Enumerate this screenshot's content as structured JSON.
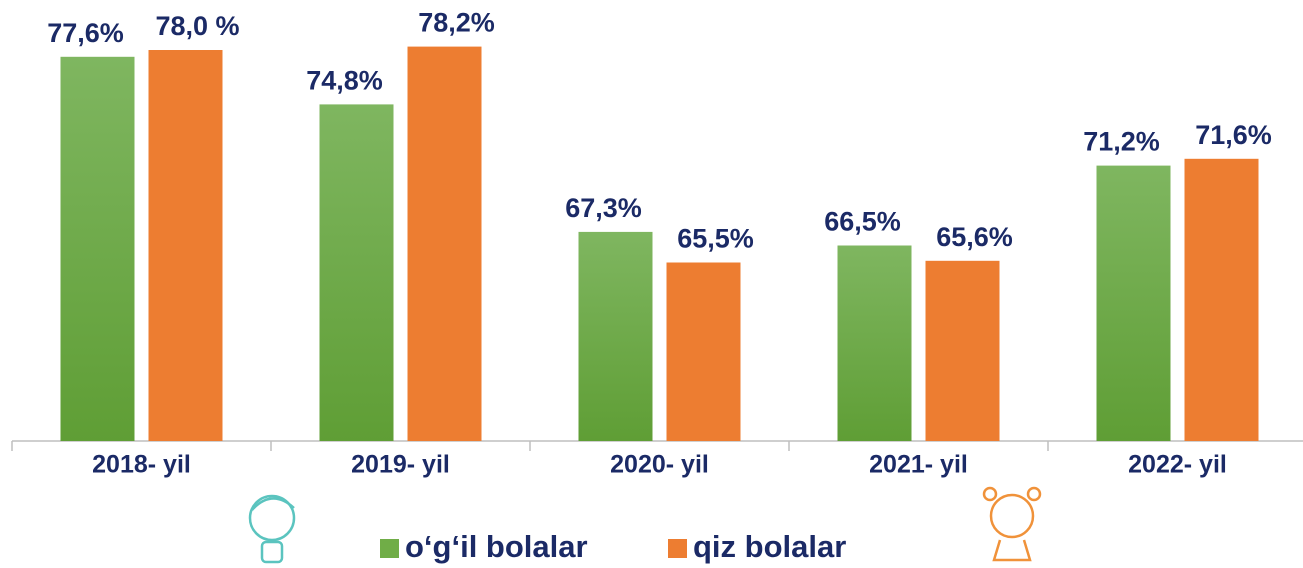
{
  "chart_data": {
    "type": "bar",
    "categories": [
      "2018- yil",
      "2019- yil",
      "2020- yil",
      "2021- yil",
      "2022- yil"
    ],
    "series": [
      {
        "name": "o‘g‘il bolalar",
        "color": "#70ad47",
        "values": [
          77.6,
          74.8,
          67.3,
          66.5,
          71.2
        ],
        "value_labels": [
          "77,6%",
          "74,8%",
          "67,3%",
          "66,5%",
          "71,2%"
        ]
      },
      {
        "name": "qiz bolalar",
        "color": "#ed7d31",
        "values": [
          78.0,
          78.2,
          65.5,
          65.6,
          71.6
        ],
        "value_labels": [
          "78,0 %",
          "78,2%",
          "65,5%",
          "65,6%",
          "71,6%"
        ]
      }
    ],
    "ylim": [
      55,
      80
    ],
    "legend": "bottom"
  }
}
